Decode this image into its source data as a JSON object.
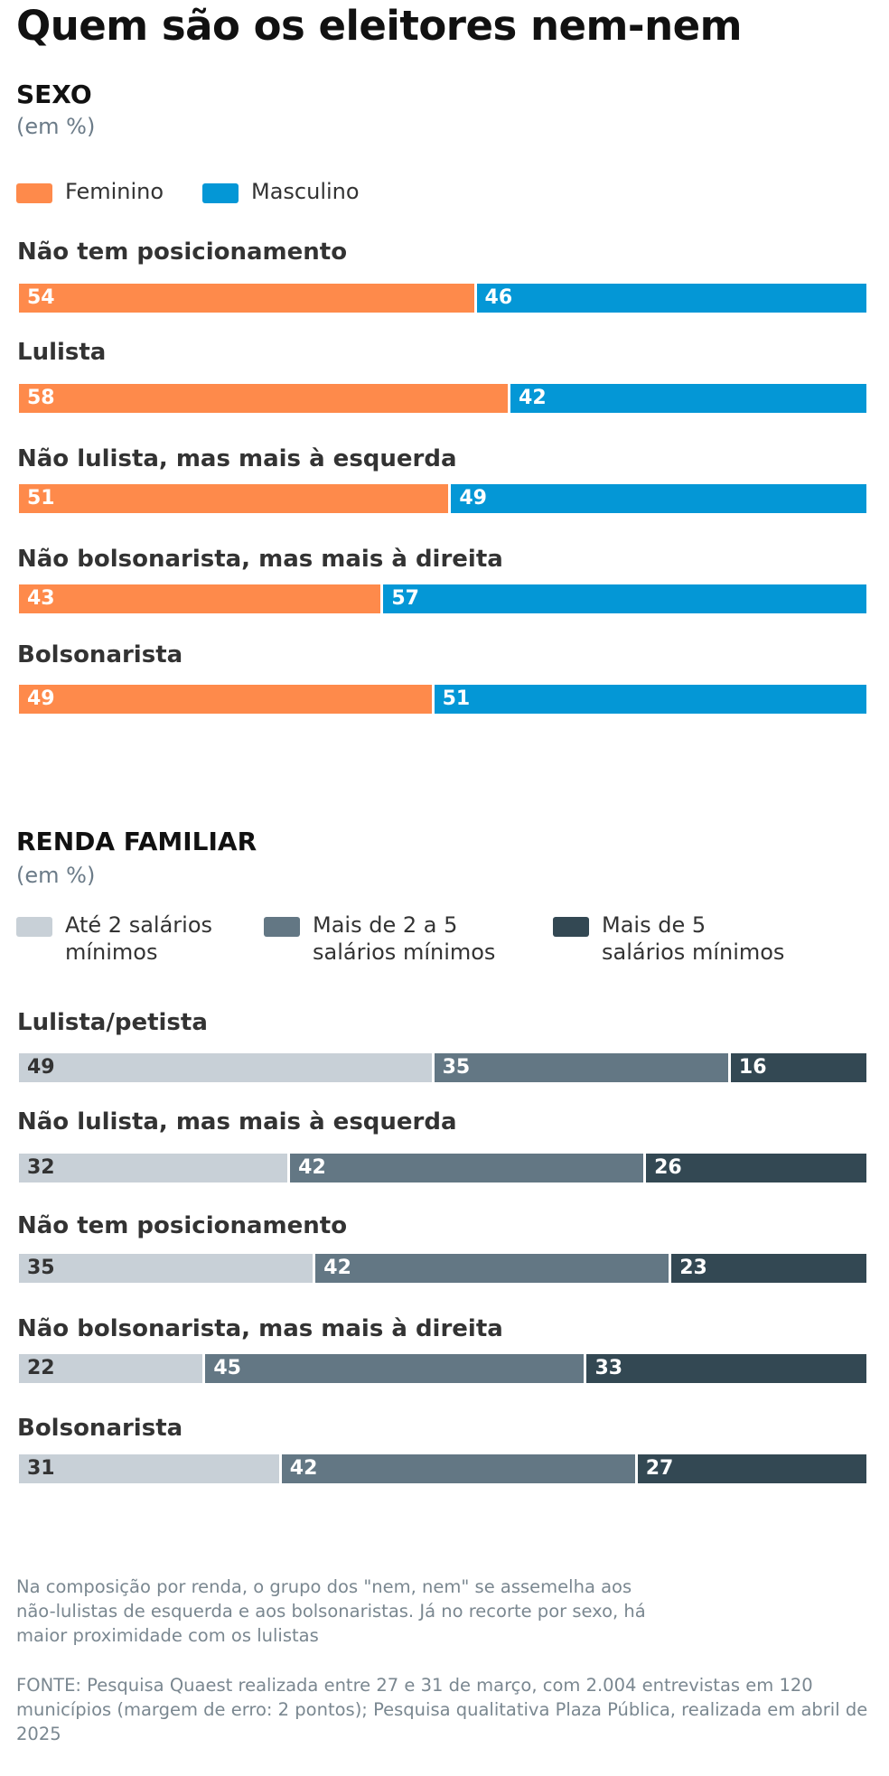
{
  "title": "Quem são os eleitores nem-nem",
  "chart_data": [
    {
      "type": "bar",
      "orientation": "horizontal",
      "stacked": true,
      "title": "SEXO",
      "unit": "(em %)",
      "xlim": [
        0,
        100
      ],
      "categories": [
        "Não tem posicionamento",
        "Lulista",
        "Não lulista, mas mais à esquerda",
        "Não bolsonarista, mas mais à direita",
        "Bolsonarista"
      ],
      "series": [
        {
          "name": "Feminino",
          "color": "#fe8a4b",
          "label_color": "#ffffff",
          "values": [
            54,
            58,
            51,
            43,
            49
          ]
        },
        {
          "name": "Masculino",
          "color": "#0497d6",
          "label_color": "#ffffff",
          "values": [
            46,
            42,
            49,
            57,
            51
          ]
        }
      ]
    },
    {
      "type": "bar",
      "orientation": "horizontal",
      "stacked": true,
      "title": "RENDA FAMILIAR",
      "unit": "(em %)",
      "xlim": [
        0,
        100
      ],
      "categories": [
        "Lulista/petista",
        "Não lulista, mas mais à esquerda",
        "Não tem posicionamento",
        "Não bolsonarista, mas mais à direita",
        "Bolsonarista"
      ],
      "series": [
        {
          "name": "Até 2 salários\nmínimos",
          "color": "#c8d0d7",
          "label_color": "#333333",
          "values": [
            49,
            32,
            35,
            22,
            31
          ]
        },
        {
          "name": "Mais de 2 a 5\nsalários mínimos",
          "color": "#637784",
          "label_color": "#ffffff",
          "values": [
            35,
            42,
            42,
            45,
            42
          ]
        },
        {
          "name": "Mais de 5\nsalários mínimos",
          "color": "#334853",
          "label_color": "#ffffff",
          "values": [
            16,
            26,
            23,
            33,
            27
          ]
        }
      ]
    }
  ],
  "note": "Na composição por renda, o grupo dos \"nem, nem\" se assemelha aos não-lulistas de esquerda e aos bolsonaristas. Já no recorte por sexo, há maior proximidade com os lulistas",
  "source": "FONTE: Pesquisa Quaest realizada entre 27 e 31 de março, com 2.004 entrevistas em 120 municípios (margem de erro: 2 pontos); Pesquisa qualitativa Plaza Pública, realizada em abril de 2025"
}
